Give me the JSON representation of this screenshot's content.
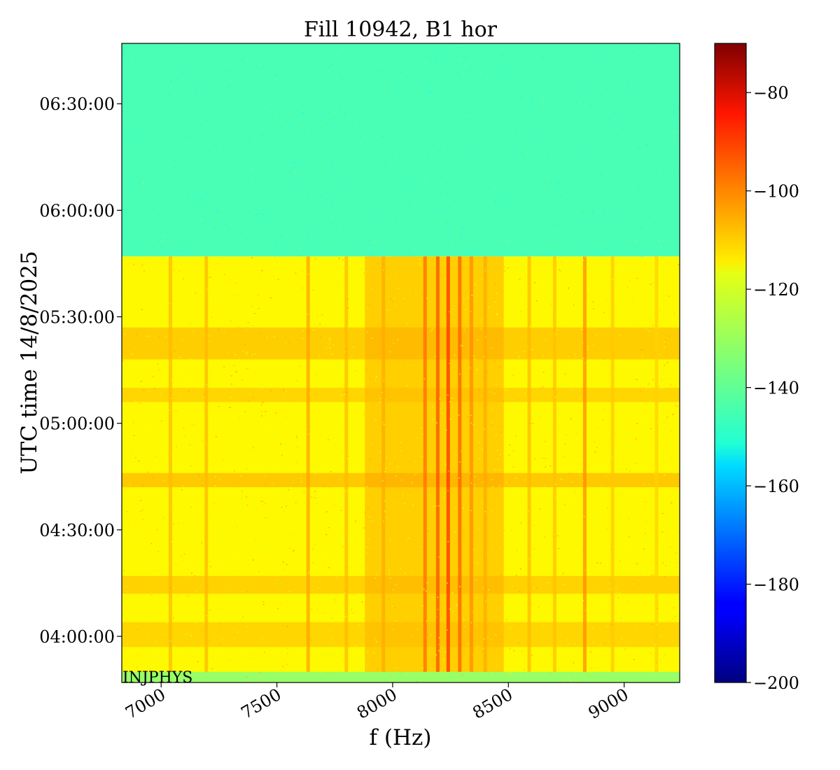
{
  "chart_data": {
    "type": "heatmap",
    "title": "Fill 10942, B1 hor",
    "xlabel": "f (Hz)",
    "ylabel": "UTC time 14/8/2025",
    "xlim": [
      6830,
      9240
    ],
    "ylim": [
      "03:47:00",
      "06:47:00"
    ],
    "x_ticks": [
      {
        "value": 7000,
        "label": "7000"
      },
      {
        "value": 7500,
        "label": "7500"
      },
      {
        "value": 8000,
        "label": "8000"
      },
      {
        "value": 8500,
        "label": "8500"
      },
      {
        "value": 9000,
        "label": "9000"
      }
    ],
    "y_ticks": [
      {
        "value": "04:00:00",
        "label": "04:00:00"
      },
      {
        "value": "04:30:00",
        "label": "04:30:00"
      },
      {
        "value": "05:00:00",
        "label": "05:00:00"
      },
      {
        "value": "05:30:00",
        "label": "05:30:00"
      },
      {
        "value": "06:00:00",
        "label": "06:00:00"
      },
      {
        "value": "06:30:00",
        "label": "06:30:00"
      }
    ],
    "colorbar": {
      "colormap": "jet",
      "range": [
        -200,
        -70
      ],
      "ticks": [
        {
          "value": -80,
          "label": "−80"
        },
        {
          "value": -100,
          "label": "−100"
        },
        {
          "value": -120,
          "label": "−120"
        },
        {
          "value": -140,
          "label": "−140"
        },
        {
          "value": -160,
          "label": "−160"
        },
        {
          "value": -180,
          "label": "−180"
        },
        {
          "value": -200,
          "label": "−200"
        }
      ]
    },
    "beam_off_after": "05:47:00",
    "level_beam_off": -142,
    "level_beam_on": -118,
    "annotation": "INJPHYS",
    "vertical_lines": [
      {
        "f": 7040,
        "level": -110
      },
      {
        "f": 7195,
        "level": -110
      },
      {
        "f": 7635,
        "level": -107
      },
      {
        "f": 7800,
        "level": -110
      },
      {
        "f": 7960,
        "level": -108
      },
      {
        "f": 8140,
        "level": -100
      },
      {
        "f": 8195,
        "level": -96
      },
      {
        "f": 8240,
        "level": -92
      },
      {
        "f": 8290,
        "level": -98
      },
      {
        "f": 8340,
        "level": -104
      },
      {
        "f": 8400,
        "level": -108
      },
      {
        "f": 8590,
        "level": -110
      },
      {
        "f": 8700,
        "level": -111
      },
      {
        "f": 8830,
        "level": -104
      },
      {
        "f": 8950,
        "level": -112
      },
      {
        "f": 9140,
        "level": -113
      }
    ],
    "horizontal_bands": [
      {
        "t_start": "05:18:00",
        "t_end": "05:27:00",
        "level": -108
      },
      {
        "t_start": "05:06:00",
        "t_end": "05:10:00",
        "level": -110
      },
      {
        "t_start": "04:42:00",
        "t_end": "04:46:00",
        "level": -107
      },
      {
        "t_start": "04:12:00",
        "t_end": "04:17:00",
        "level": -109
      },
      {
        "t_start": "03:57:00",
        "t_end": "04:04:00",
        "level": -110
      }
    ],
    "hot_region": {
      "f_center": 8180,
      "f_half_width": 300,
      "level": -106
    },
    "bottom_strip": {
      "t_start": "03:47:00",
      "t_end": "03:50:00",
      "level": -132
    }
  }
}
